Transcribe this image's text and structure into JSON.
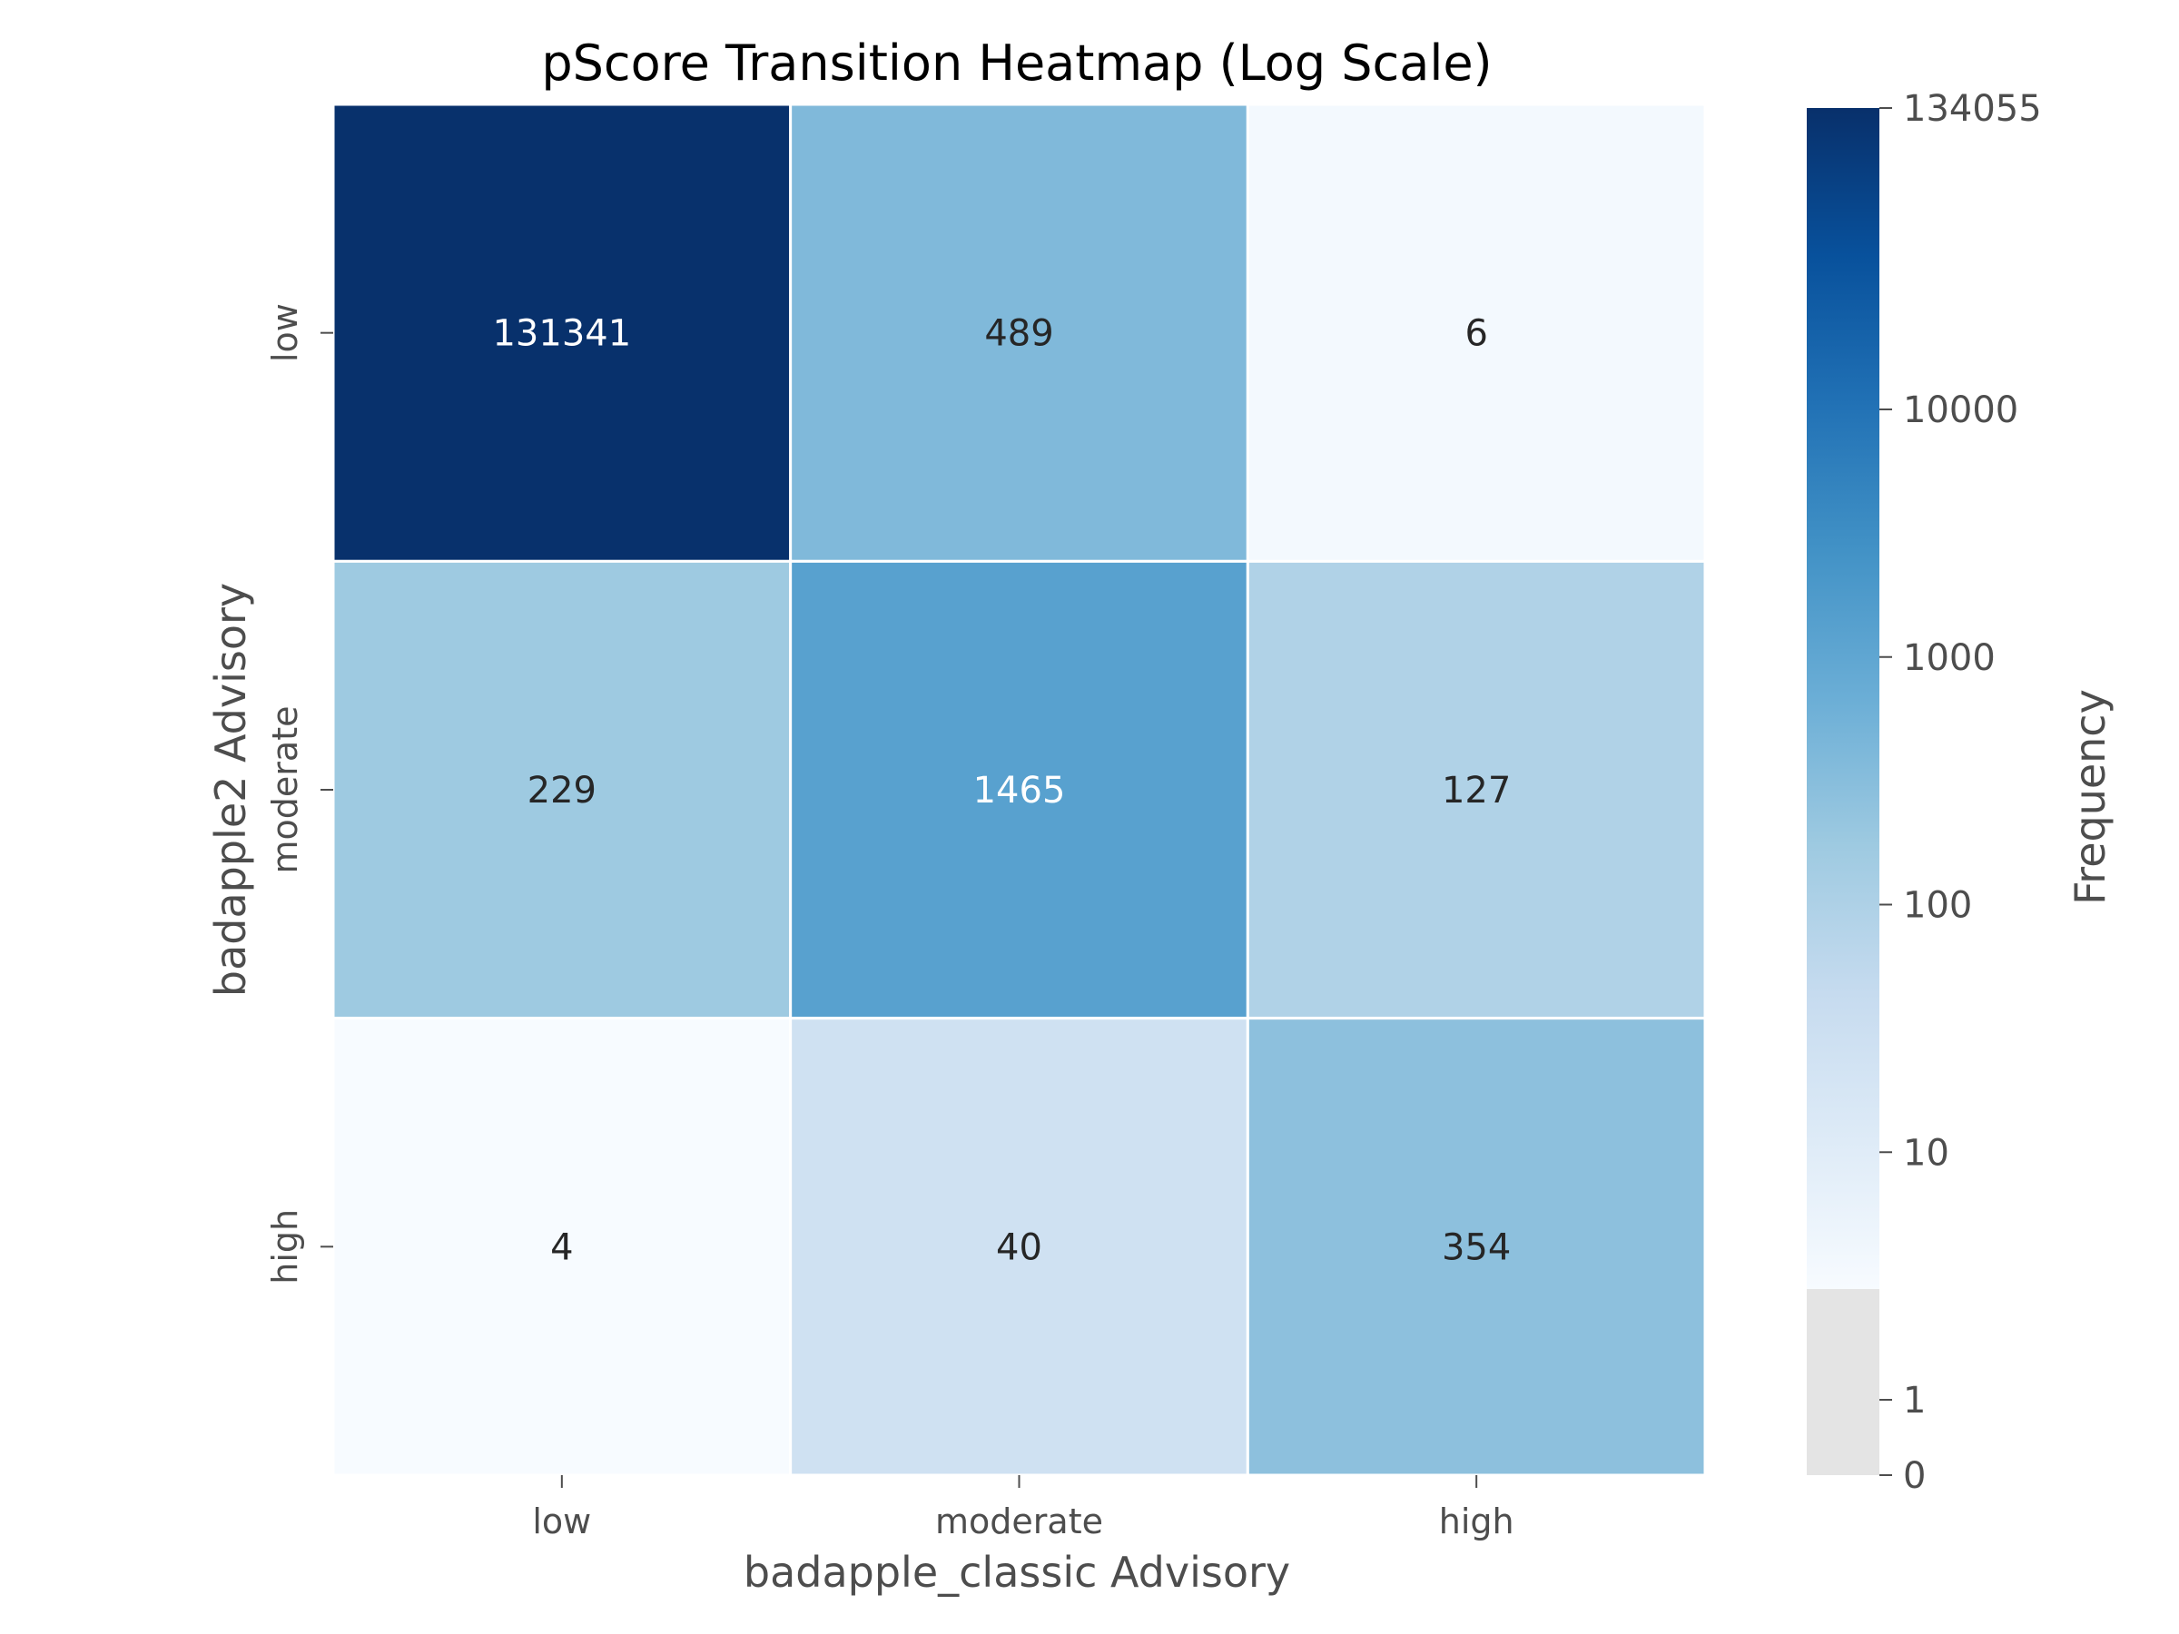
{
  "chart_data": {
    "type": "heatmap",
    "title": "pScore Transition Heatmap (Log Scale)",
    "xlabel": "badapple_classic Advisory",
    "ylabel": "badapple2 Advisory",
    "x_categories": [
      "low",
      "moderate",
      "high"
    ],
    "y_categories": [
      "low",
      "moderate",
      "high"
    ],
    "values": [
      [
        131341,
        489,
        6
      ],
      [
        229,
        1465,
        127
      ],
      [
        4,
        40,
        354
      ]
    ],
    "colorbar": {
      "label": "Frequency",
      "scale": "log",
      "colormap": "Blues",
      "range": [
        0,
        134055
      ],
      "ticks": [
        {
          "value": 0,
          "label": "0"
        },
        {
          "value": 1,
          "label": "1"
        },
        {
          "value": 10,
          "label": "10"
        },
        {
          "value": 100,
          "label": "100"
        },
        {
          "value": 1000,
          "label": "1000"
        },
        {
          "value": 10000,
          "label": "10000"
        },
        {
          "value": 134055,
          "label": "134055"
        }
      ],
      "under_color": "#e4e4e4"
    },
    "grid": false
  }
}
